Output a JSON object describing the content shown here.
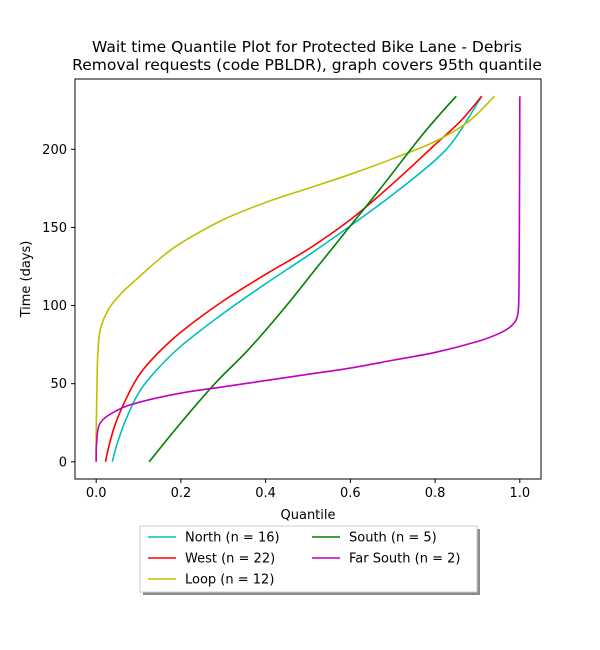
{
  "chart_data": {
    "type": "line",
    "title_lines": [
      "Wait time Quantile Plot for Protected Bike Lane - Debris",
      "Removal  requests (code PBLDR), graph covers 95th quantile"
    ],
    "xlabel": "Quantile",
    "ylabel": "Time (days)",
    "xlim": [
      -0.05,
      1.05
    ],
    "ylim": [
      -11,
      245
    ],
    "xticks": [
      0.0,
      0.2,
      0.4,
      0.6,
      0.8,
      1.0
    ],
    "xtick_labels": [
      "0.0",
      "0.2",
      "0.4",
      "0.6",
      "0.8",
      "1.0"
    ],
    "yticks": [
      0,
      50,
      100,
      150,
      200
    ],
    "ytick_labels": [
      "0",
      "50",
      "100",
      "150",
      "200"
    ],
    "grid": false,
    "legend_placement": "below plot, two columns",
    "series": [
      {
        "name": "North (n = 16)",
        "color": "#00bfbf",
        "points": [
          [
            0.038,
            0
          ],
          [
            0.05,
            12
          ],
          [
            0.07,
            27
          ],
          [
            0.1,
            44
          ],
          [
            0.14,
            58
          ],
          [
            0.2,
            74
          ],
          [
            0.3,
            95
          ],
          [
            0.4,
            114
          ],
          [
            0.5,
            132
          ],
          [
            0.6,
            151
          ],
          [
            0.7,
            171
          ],
          [
            0.8,
            193
          ],
          [
            0.85,
            208
          ],
          [
            0.91,
            234
          ]
        ]
      },
      {
        "name": "West (n = 22)",
        "color": "#ff0000",
        "points": [
          [
            0.022,
            0
          ],
          [
            0.03,
            10
          ],
          [
            0.045,
            24
          ],
          [
            0.07,
            40
          ],
          [
            0.1,
            55
          ],
          [
            0.14,
            68
          ],
          [
            0.2,
            83
          ],
          [
            0.3,
            103
          ],
          [
            0.4,
            120
          ],
          [
            0.5,
            136
          ],
          [
            0.6,
            155
          ],
          [
            0.7,
            178
          ],
          [
            0.8,
            203
          ],
          [
            0.86,
            218
          ],
          [
            0.91,
            234
          ]
        ]
      },
      {
        "name": "Loop (n = 12)",
        "color": "#bfbf00",
        "points": [
          [
            0.0,
            0
          ],
          [
            0.0,
            18
          ],
          [
            0.002,
            50
          ],
          [
            0.004,
            70
          ],
          [
            0.01,
            85
          ],
          [
            0.03,
            98
          ],
          [
            0.06,
            108
          ],
          [
            0.1,
            118
          ],
          [
            0.15,
            130
          ],
          [
            0.2,
            140
          ],
          [
            0.3,
            155
          ],
          [
            0.4,
            166
          ],
          [
            0.5,
            175
          ],
          [
            0.6,
            184
          ],
          [
            0.7,
            194
          ],
          [
            0.8,
            205
          ],
          [
            0.88,
            218
          ],
          [
            0.94,
            234
          ]
        ]
      },
      {
        "name": "South (n = 5)",
        "color": "#008000",
        "points": [
          [
            0.125,
            0
          ],
          [
            0.2,
            25
          ],
          [
            0.28,
            50
          ],
          [
            0.36,
            72
          ],
          [
            0.44,
            97
          ],
          [
            0.52,
            124
          ],
          [
            0.6,
            151
          ],
          [
            0.68,
            178
          ],
          [
            0.76,
            206
          ],
          [
            0.81,
            222
          ],
          [
            0.85,
            234
          ]
        ]
      },
      {
        "name": "Far South (n = 2)",
        "color": "#bf00bf",
        "points": [
          [
            0.0,
            0
          ],
          [
            0.001,
            12
          ],
          [
            0.01,
            25
          ],
          [
            0.05,
            33
          ],
          [
            0.1,
            38
          ],
          [
            0.2,
            44
          ],
          [
            0.3,
            48
          ],
          [
            0.4,
            52
          ],
          [
            0.5,
            56
          ],
          [
            0.6,
            60
          ],
          [
            0.7,
            65
          ],
          [
            0.8,
            70
          ],
          [
            0.9,
            77
          ],
          [
            0.95,
            82
          ],
          [
            0.98,
            87
          ],
          [
            0.995,
            94
          ],
          [
            0.998,
            110
          ],
          [
            0.999,
            150
          ],
          [
            1.0,
            234
          ]
        ]
      }
    ]
  }
}
